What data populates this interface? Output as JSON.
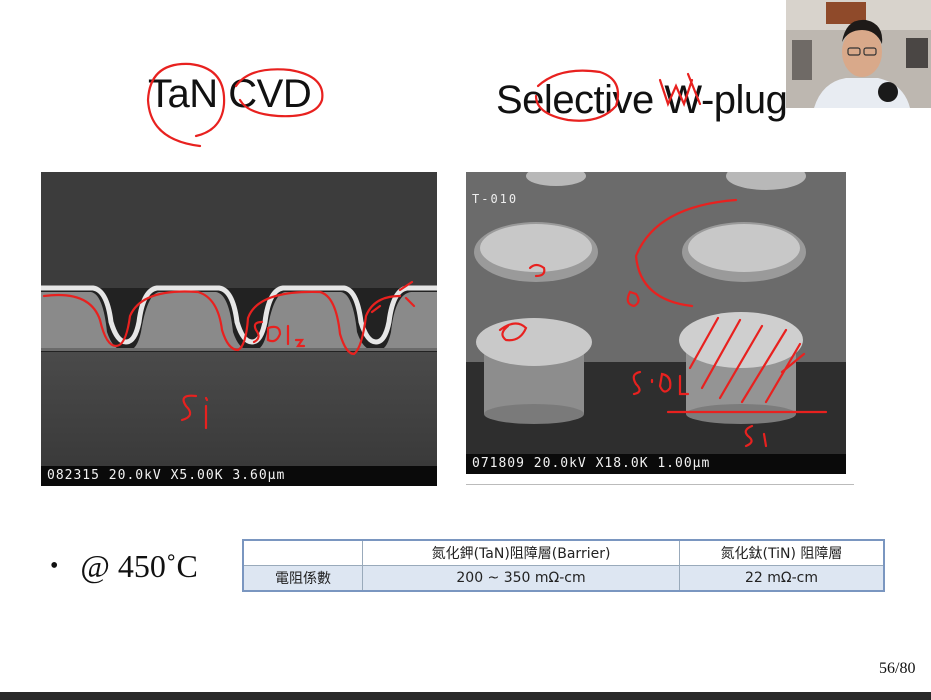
{
  "slide": {
    "title_left": "TaN CVD",
    "title_right": "Selective W-plug",
    "sem_left": {
      "scalebar": "082315 20.0kV X5.00K 3.60µm"
    },
    "sem_right": {
      "label": "T-010",
      "scalebar": "071809 20.0kV X18.0K 1.00µm"
    },
    "bullet": "@ 450˚C",
    "table": {
      "headers": [
        "",
        "氮化鉀(TaN)阻障層(Barrier)",
        "氮化鈦(TiN) 阻障層"
      ],
      "row_label": "電阻係數",
      "values": [
        "200 ~ 350 mΩ-cm",
        "22 mΩ-cm"
      ]
    },
    "page_number": "56/80"
  },
  "annotations": {
    "ink_color": "#e8211f",
    "left_labels": [
      "SiO₂",
      "Si"
    ],
    "right_labels": [
      "SiO₂",
      "Si"
    ]
  }
}
